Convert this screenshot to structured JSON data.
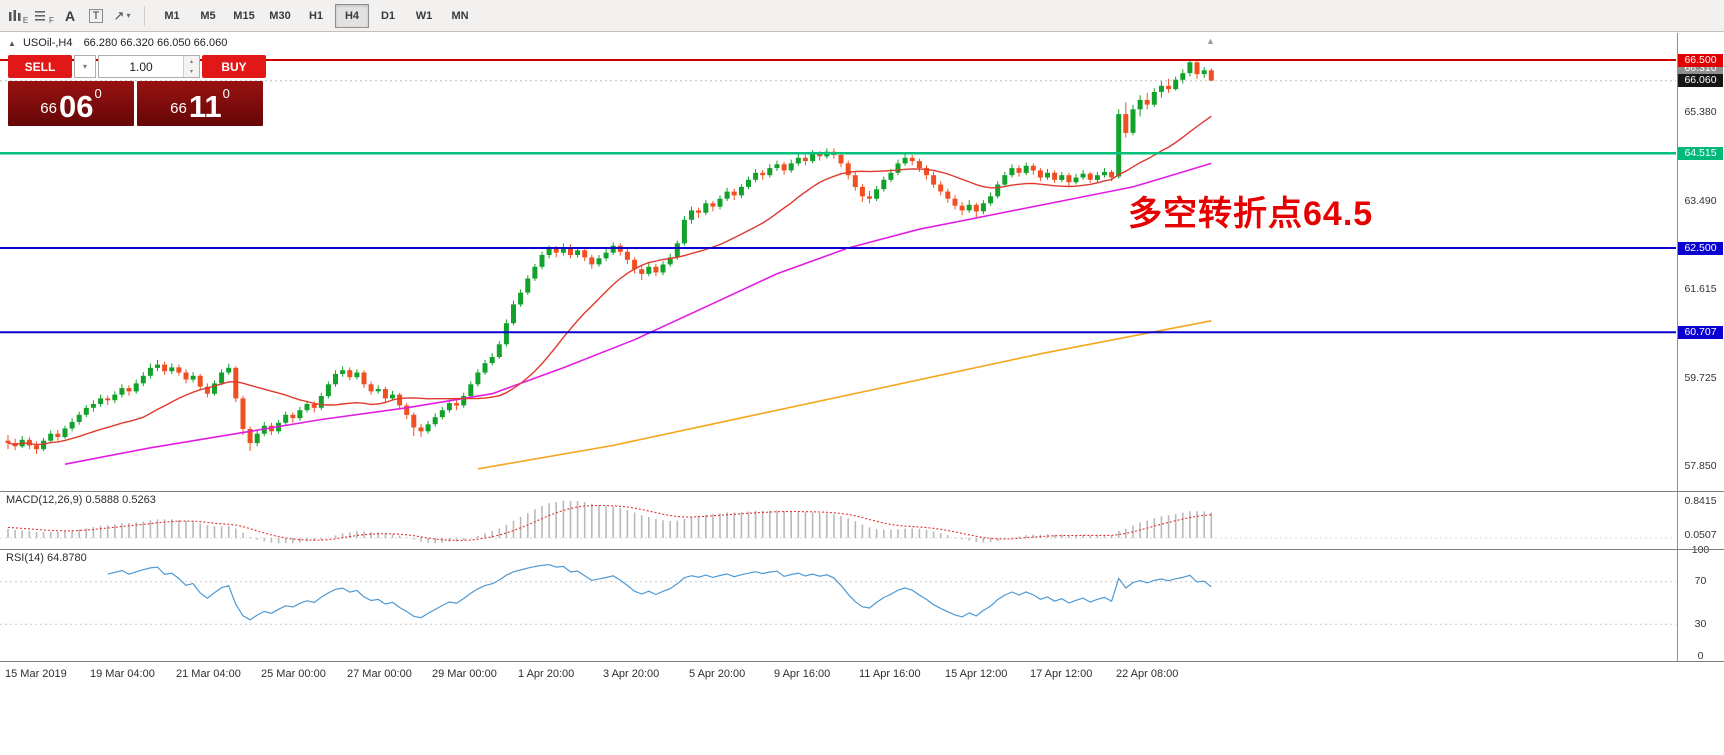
{
  "toolbar": {
    "tools": [
      {
        "name": "candlestick-template",
        "label": "E"
      },
      {
        "name": "indicator-grid-template",
        "label": "F"
      },
      {
        "name": "text-tool",
        "label": "A"
      },
      {
        "name": "textbox-tool",
        "label": "T"
      },
      {
        "name": "drawing-tool",
        "label": "↗"
      }
    ],
    "timeframes": [
      "M1",
      "M5",
      "M15",
      "M30",
      "H1",
      "H4",
      "D1",
      "W1",
      "MN"
    ],
    "active_timeframe": "H4"
  },
  "chart": {
    "symbol_period": "USOil-,H4",
    "ohlc_text": "66.280 66.320 66.050 66.060",
    "collapse_arrow": "▲"
  },
  "trade_panel": {
    "sell_label": "SELL",
    "buy_label": "BUY",
    "volume": "1.00",
    "sell_price": {
      "small": "66",
      "big": "06",
      "sup": "0"
    },
    "buy_price": {
      "small": "66",
      "big": "11",
      "sup": "0"
    }
  },
  "annotation": {
    "text": "多空转折点64.5",
    "color": "#e60000"
  },
  "macd": {
    "label": "MACD(12,26,9) 0.5888 0.5263"
  },
  "rsi": {
    "label": "RSI(14) 64.8780"
  },
  "price_axis": {
    "labels": [
      {
        "text": "66.500",
        "value": 66.5,
        "panel": "main",
        "style": "red"
      },
      {
        "text": "66.310",
        "value": 66.31,
        "panel": "main",
        "style": "ghost"
      },
      {
        "text": "66.060",
        "value": 66.06,
        "panel": "main",
        "style": "bid"
      },
      {
        "text": "65.380",
        "value": 65.38,
        "panel": "main",
        "style": "plain"
      },
      {
        "text": "64.515",
        "value": 64.515,
        "panel": "main",
        "style": "green"
      },
      {
        "text": "63.490",
        "value": 63.49,
        "panel": "main",
        "style": "plain"
      },
      {
        "text": "62.500",
        "value": 62.5,
        "panel": "main",
        "style": "blue"
      },
      {
        "text": "61.615",
        "value": 61.615,
        "panel": "main",
        "style": "plain"
      },
      {
        "text": "60.707",
        "value": 60.707,
        "panel": "main",
        "style": "blue"
      },
      {
        "text": "59.725",
        "value": 59.725,
        "panel": "main",
        "style": "plain"
      },
      {
        "text": "57.850",
        "value": 57.85,
        "panel": "main",
        "style": "plain"
      },
      {
        "text": "0.8415",
        "value": 0.8415,
        "panel": "macd",
        "style": "plain"
      },
      {
        "text": "0.0507",
        "value": 0.0507,
        "panel": "macd",
        "style": "plain"
      },
      {
        "text": "100",
        "value": 100,
        "panel": "rsi",
        "style": "plain"
      },
      {
        "text": "70",
        "value": 70,
        "panel": "rsi",
        "style": "plain"
      },
      {
        "text": "30",
        "value": 30,
        "panel": "rsi",
        "style": "plain"
      },
      {
        "text": "0",
        "value": 0,
        "panel": "rsi",
        "style": "plain"
      }
    ]
  },
  "time_axis": {
    "labels": [
      "15 Mar 2019",
      "19 Mar 04:00",
      "21 Mar 04:00",
      "25 Mar 00:00",
      "27 Mar 00:00",
      "29 Mar 00:00",
      "1 Apr 20:00",
      "3 Apr 20:00",
      "5 Apr 20:00",
      "9 Apr 16:00",
      "11 Apr 16:00",
      "15 Apr 12:00",
      "17 Apr 12:00",
      "22 Apr 08:00"
    ]
  },
  "chart_data": {
    "type": "candlestick",
    "symbol": "USOil-",
    "timeframe": "H4",
    "current_bar": {
      "open": 66.28,
      "high": 66.32,
      "low": 66.05,
      "close": 66.06
    },
    "bid_price": 66.06,
    "visible_price_range": [
      57.4,
      66.9
    ],
    "colors": {
      "up": "#12a12b",
      "down": "#f04f22",
      "ma_red": "#e03a2e",
      "ma_magenta": "#e21ce2",
      "ma_orange": "#f4a71d",
      "macd_hist": "#b9b9b9",
      "macd_signal": "#e03232",
      "rsi_line": "#4e9ad5",
      "hline_red": "#cd0000",
      "hline_green": "#00c17b",
      "hline_blue": "#0a00d0"
    },
    "hlines": [
      {
        "price": 66.5,
        "color": "#cd0000",
        "width": 2
      },
      {
        "price": 64.515,
        "color": "#00c17b",
        "width": 2.5
      },
      {
        "price": 62.5,
        "color": "#0a00d0",
        "width": 2
      },
      {
        "price": 60.707,
        "color": "#0a00d0",
        "width": 2
      }
    ],
    "ma": {
      "red_period": 20,
      "magenta_anchors": [
        [
          8,
          57.9
        ],
        [
          20,
          58.25
        ],
        [
          32,
          58.55
        ],
        [
          44,
          58.85
        ],
        [
          56,
          59.1
        ],
        [
          68,
          59.4
        ],
        [
          78,
          59.95
        ],
        [
          88,
          60.55
        ],
        [
          98,
          61.25
        ],
        [
          108,
          61.95
        ],
        [
          118,
          62.5
        ],
        [
          128,
          62.9
        ],
        [
          138,
          63.2
        ],
        [
          148,
          63.5
        ],
        [
          158,
          63.8
        ],
        [
          169,
          64.3
        ]
      ],
      "orange_anchors": [
        [
          66,
          57.8
        ],
        [
          85,
          58.3
        ],
        [
          105,
          58.95
        ],
        [
          125,
          59.6
        ],
        [
          145,
          60.25
        ],
        [
          169,
          60.95
        ]
      ]
    },
    "indicators": {
      "macd": {
        "fast": 12,
        "slow": 26,
        "signal": 9,
        "main_value": 0.5888,
        "signal_value": 0.5263,
        "axis_top": 0.8415,
        "axis_low": 0.0507
      },
      "rsi": {
        "period": 14,
        "value": 64.878,
        "levels": [
          70,
          30
        ],
        "axis": [
          100,
          70,
          30,
          0
        ]
      }
    },
    "candles": [
      [
        58.4,
        58.52,
        58.22,
        58.35
      ],
      [
        58.35,
        58.44,
        58.2,
        58.28
      ],
      [
        58.28,
        58.5,
        58.24,
        58.42
      ],
      [
        58.42,
        58.48,
        58.22,
        58.3
      ],
      [
        58.3,
        58.38,
        58.12,
        58.22
      ],
      [
        58.22,
        58.46,
        58.18,
        58.4
      ],
      [
        58.4,
        58.62,
        58.35,
        58.55
      ],
      [
        58.55,
        58.63,
        58.4,
        58.48
      ],
      [
        58.48,
        58.72,
        58.44,
        58.66
      ],
      [
        58.66,
        58.88,
        58.6,
        58.8
      ],
      [
        58.8,
        59.02,
        58.74,
        58.95
      ],
      [
        58.95,
        59.16,
        58.9,
        59.1
      ],
      [
        59.1,
        59.26,
        59.02,
        59.18
      ],
      [
        59.18,
        59.38,
        59.12,
        59.3
      ],
      [
        59.3,
        59.36,
        59.16,
        59.26
      ],
      [
        59.26,
        59.45,
        59.2,
        59.38
      ],
      [
        59.38,
        59.6,
        59.32,
        59.52
      ],
      [
        59.52,
        59.58,
        59.36,
        59.45
      ],
      [
        59.45,
        59.7,
        59.4,
        59.62
      ],
      [
        59.62,
        59.86,
        59.56,
        59.78
      ],
      [
        59.78,
        60.04,
        59.72,
        59.95
      ],
      [
        59.95,
        60.12,
        59.88,
        60.02
      ],
      [
        60.02,
        60.08,
        59.8,
        59.88
      ],
      [
        59.88,
        60.05,
        59.82,
        59.96
      ],
      [
        59.96,
        60.02,
        59.78,
        59.85
      ],
      [
        59.85,
        59.92,
        59.62,
        59.7
      ],
      [
        59.7,
        59.86,
        59.64,
        59.78
      ],
      [
        59.78,
        59.82,
        59.48,
        59.55
      ],
      [
        59.55,
        59.62,
        59.32,
        59.4
      ],
      [
        59.4,
        59.68,
        59.36,
        59.62
      ],
      [
        59.62,
        59.92,
        59.58,
        59.85
      ],
      [
        59.85,
        60.04,
        59.8,
        59.95
      ],
      [
        59.95,
        59.98,
        59.22,
        59.3
      ],
      [
        59.3,
        59.36,
        58.52,
        58.65
      ],
      [
        58.65,
        58.7,
        58.18,
        58.35
      ],
      [
        58.35,
        58.62,
        58.28,
        58.55
      ],
      [
        58.55,
        58.8,
        58.5,
        58.72
      ],
      [
        58.72,
        58.78,
        58.52,
        58.6
      ],
      [
        58.6,
        58.84,
        58.55,
        58.78
      ],
      [
        58.78,
        59.02,
        58.72,
        58.95
      ],
      [
        58.95,
        59.0,
        58.78,
        58.88
      ],
      [
        58.88,
        59.12,
        58.82,
        59.05
      ],
      [
        59.05,
        59.25,
        59.0,
        59.18
      ],
      [
        59.18,
        59.24,
        59.0,
        59.1
      ],
      [
        59.1,
        59.42,
        59.05,
        59.35
      ],
      [
        59.35,
        59.66,
        59.3,
        59.6
      ],
      [
        59.6,
        59.9,
        59.55,
        59.82
      ],
      [
        59.82,
        59.98,
        59.76,
        59.9
      ],
      [
        59.9,
        59.96,
        59.68,
        59.75
      ],
      [
        59.75,
        59.92,
        59.7,
        59.85
      ],
      [
        59.85,
        59.9,
        59.52,
        59.6
      ],
      [
        59.6,
        59.66,
        59.38,
        59.45
      ],
      [
        59.45,
        59.58,
        59.4,
        59.5
      ],
      [
        59.5,
        59.55,
        59.22,
        59.3
      ],
      [
        59.3,
        59.46,
        59.25,
        59.38
      ],
      [
        59.38,
        59.42,
        59.08,
        59.15
      ],
      [
        59.15,
        59.2,
        58.86,
        58.95
      ],
      [
        58.95,
        59.0,
        58.5,
        58.68
      ],
      [
        58.68,
        58.76,
        58.48,
        58.6
      ],
      [
        58.6,
        58.82,
        58.55,
        58.75
      ],
      [
        58.75,
        58.98,
        58.7,
        58.9
      ],
      [
        58.9,
        59.12,
        58.85,
        59.05
      ],
      [
        59.05,
        59.28,
        59.0,
        59.2
      ],
      [
        59.2,
        59.26,
        59.05,
        59.15
      ],
      [
        59.15,
        59.42,
        59.1,
        59.35
      ],
      [
        59.35,
        59.66,
        59.3,
        59.6
      ],
      [
        59.6,
        59.92,
        59.55,
        59.85
      ],
      [
        59.85,
        60.12,
        59.8,
        60.05
      ],
      [
        60.05,
        60.26,
        60.0,
        60.18
      ],
      [
        60.18,
        60.52,
        60.14,
        60.45
      ],
      [
        60.45,
        60.98,
        60.4,
        60.9
      ],
      [
        60.9,
        61.38,
        60.85,
        61.3
      ],
      [
        61.3,
        61.62,
        61.25,
        61.55
      ],
      [
        61.55,
        61.92,
        61.5,
        61.85
      ],
      [
        61.85,
        62.16,
        61.8,
        62.1
      ],
      [
        62.1,
        62.42,
        62.05,
        62.35
      ],
      [
        62.35,
        62.55,
        62.28,
        62.48
      ],
      [
        62.48,
        62.54,
        62.3,
        62.4
      ],
      [
        62.4,
        62.6,
        62.34,
        62.52
      ],
      [
        62.52,
        62.58,
        62.28,
        62.35
      ],
      [
        62.35,
        62.52,
        62.3,
        62.45
      ],
      [
        62.45,
        62.5,
        62.22,
        62.3
      ],
      [
        62.3,
        62.36,
        62.06,
        62.15
      ],
      [
        62.15,
        62.35,
        62.1,
        62.28
      ],
      [
        62.28,
        62.48,
        62.22,
        62.4
      ],
      [
        62.4,
        62.62,
        62.35,
        62.55
      ],
      [
        62.55,
        62.6,
        62.34,
        62.42
      ],
      [
        62.42,
        62.48,
        62.16,
        62.25
      ],
      [
        62.25,
        62.3,
        61.96,
        62.05
      ],
      [
        62.05,
        62.12,
        61.82,
        61.95
      ],
      [
        61.95,
        62.18,
        61.9,
        62.1
      ],
      [
        62.1,
        62.16,
        61.9,
        61.98
      ],
      [
        61.98,
        62.22,
        61.92,
        62.15
      ],
      [
        62.15,
        62.38,
        62.1,
        62.3
      ],
      [
        62.3,
        62.66,
        62.25,
        62.6
      ],
      [
        62.6,
        63.18,
        62.55,
        63.1
      ],
      [
        63.1,
        63.38,
        63.02,
        63.3
      ],
      [
        63.3,
        63.36,
        63.14,
        63.25
      ],
      [
        63.25,
        63.52,
        63.2,
        63.45
      ],
      [
        63.45,
        63.5,
        63.28,
        63.38
      ],
      [
        63.38,
        63.62,
        63.32,
        63.55
      ],
      [
        63.55,
        63.78,
        63.5,
        63.7
      ],
      [
        63.7,
        63.76,
        63.52,
        63.62
      ],
      [
        63.62,
        63.86,
        63.56,
        63.8
      ],
      [
        63.8,
        64.02,
        63.75,
        63.95
      ],
      [
        63.95,
        64.18,
        63.9,
        64.1
      ],
      [
        64.1,
        64.16,
        63.95,
        64.05
      ],
      [
        64.05,
        64.28,
        64.0,
        64.2
      ],
      [
        64.2,
        64.36,
        64.14,
        64.28
      ],
      [
        64.28,
        64.33,
        64.06,
        64.15
      ],
      [
        64.15,
        64.38,
        64.1,
        64.3
      ],
      [
        64.3,
        64.5,
        64.25,
        64.42
      ],
      [
        64.42,
        64.48,
        64.26,
        64.35
      ],
      [
        64.35,
        64.58,
        64.3,
        64.5
      ],
      [
        64.5,
        64.56,
        64.36,
        64.45
      ],
      [
        64.45,
        64.62,
        64.4,
        64.55
      ],
      [
        64.55,
        64.62,
        64.4,
        64.48
      ],
      [
        64.48,
        64.54,
        64.22,
        64.3
      ],
      [
        64.3,
        64.36,
        63.96,
        64.05
      ],
      [
        64.05,
        64.12,
        63.72,
        63.8
      ],
      [
        63.8,
        63.86,
        63.48,
        63.6
      ],
      [
        63.6,
        63.72,
        63.45,
        63.55
      ],
      [
        63.55,
        63.82,
        63.5,
        63.75
      ],
      [
        63.75,
        64.02,
        63.7,
        63.95
      ],
      [
        63.95,
        64.18,
        63.9,
        64.1
      ],
      [
        64.1,
        64.38,
        64.05,
        64.3
      ],
      [
        64.3,
        64.5,
        64.25,
        64.42
      ],
      [
        64.42,
        64.48,
        64.26,
        64.35
      ],
      [
        64.35,
        64.4,
        64.12,
        64.2
      ],
      [
        64.2,
        64.26,
        63.96,
        64.05
      ],
      [
        64.05,
        64.12,
        63.78,
        63.85
      ],
      [
        63.85,
        63.92,
        63.62,
        63.7
      ],
      [
        63.7,
        63.76,
        63.46,
        63.55
      ],
      [
        63.55,
        63.62,
        63.32,
        63.4
      ],
      [
        63.4,
        63.48,
        63.2,
        63.3
      ],
      [
        63.3,
        63.52,
        63.25,
        63.42
      ],
      [
        63.42,
        63.46,
        63.15,
        63.28
      ],
      [
        63.28,
        63.52,
        63.22,
        63.45
      ],
      [
        63.45,
        63.68,
        63.4,
        63.6
      ],
      [
        63.6,
        63.92,
        63.55,
        63.85
      ],
      [
        63.85,
        64.12,
        63.8,
        64.05
      ],
      [
        64.05,
        64.28,
        64.0,
        64.2
      ],
      [
        64.2,
        64.26,
        64.02,
        64.1
      ],
      [
        64.1,
        64.32,
        64.05,
        64.25
      ],
      [
        64.25,
        64.3,
        64.06,
        64.15
      ],
      [
        64.15,
        64.2,
        63.92,
        64.0
      ],
      [
        64.0,
        64.18,
        63.95,
        64.1
      ],
      [
        64.1,
        64.15,
        63.88,
        63.95
      ],
      [
        63.95,
        64.12,
        63.9,
        64.05
      ],
      [
        64.05,
        64.1,
        63.82,
        63.9
      ],
      [
        63.9,
        64.08,
        63.85,
        64.0
      ],
      [
        64.0,
        64.16,
        63.95,
        64.08
      ],
      [
        64.08,
        64.12,
        63.88,
        63.95
      ],
      [
        63.95,
        64.12,
        63.9,
        64.05
      ],
      [
        64.05,
        64.2,
        64.0,
        64.12
      ],
      [
        64.12,
        64.16,
        63.92,
        64.0
      ],
      [
        64.02,
        65.45,
        63.98,
        65.35
      ],
      [
        65.35,
        65.6,
        64.85,
        64.95
      ],
      [
        64.95,
        65.55,
        64.9,
        65.45
      ],
      [
        65.45,
        65.75,
        65.3,
        65.65
      ],
      [
        65.65,
        65.8,
        65.45,
        65.55
      ],
      [
        65.55,
        65.9,
        65.5,
        65.82
      ],
      [
        65.82,
        66.05,
        65.7,
        65.95
      ],
      [
        65.95,
        66.1,
        65.8,
        65.88
      ],
      [
        65.88,
        66.15,
        65.85,
        66.08
      ],
      [
        66.08,
        66.3,
        66.0,
        66.22
      ],
      [
        66.22,
        66.5,
        66.15,
        66.45
      ],
      [
        66.45,
        66.48,
        66.1,
        66.2
      ],
      [
        66.2,
        66.35,
        66.12,
        66.28
      ],
      [
        66.28,
        66.32,
        66.05,
        66.06
      ]
    ]
  }
}
